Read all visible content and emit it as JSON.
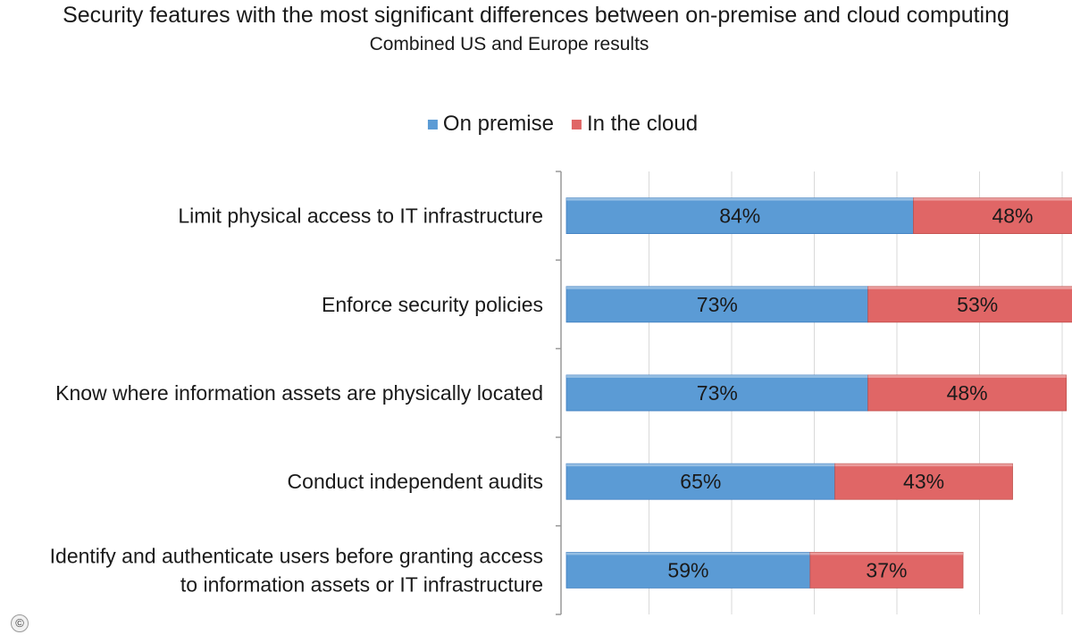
{
  "chart_data": {
    "type": "bar",
    "orientation": "horizontal",
    "stacked": true,
    "title": "Security features with the most significant differences between on-premise and cloud computing",
    "subtitle": "Combined US and Europe results",
    "legend_position": "top",
    "grid": true,
    "categories": [
      [
        "Limit physical access to IT infrastructure"
      ],
      [
        "Enforce security policies"
      ],
      [
        "Know where information assets are physically located"
      ],
      [
        "Conduct independent audits"
      ],
      [
        "Identify and authenticate users before granting access",
        "to information assets or IT infrastructure"
      ]
    ],
    "series": [
      {
        "name": "On premise",
        "color": "#5b9bd5",
        "values": [
          84,
          73,
          73,
          65,
          59
        ],
        "labels": [
          "84%",
          "73%",
          "73%",
          "65%",
          "59%"
        ]
      },
      {
        "name": "In the cloud",
        "color": "#e06666",
        "values": [
          48,
          53,
          48,
          43,
          37
        ],
        "labels": [
          "48%",
          "53%",
          "48%",
          "43%",
          "37%"
        ]
      }
    ],
    "xlim": [
      0,
      150
    ]
  },
  "footer": {
    "copyright_symbol": "©"
  }
}
